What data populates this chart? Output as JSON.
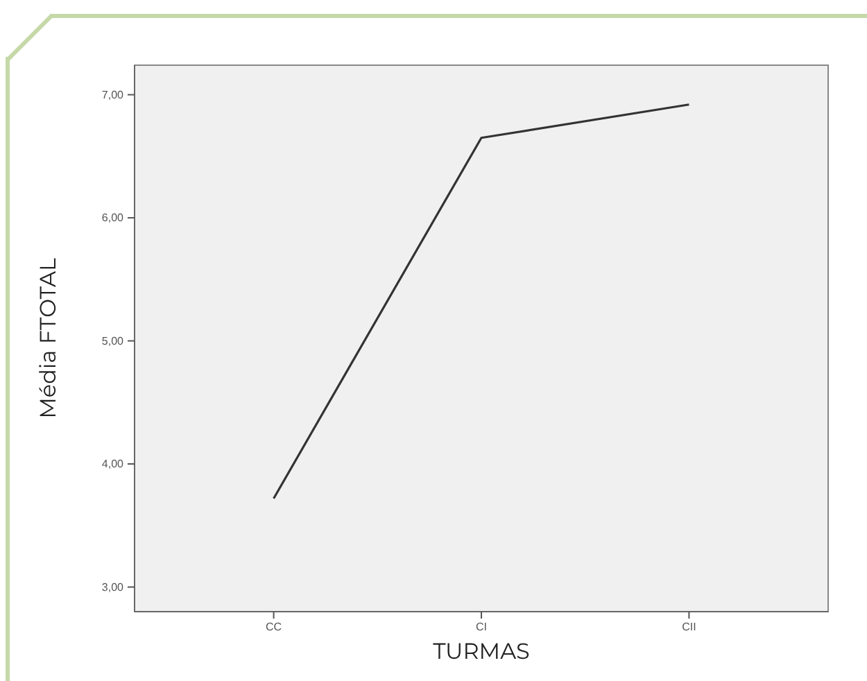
{
  "chart_data": {
    "type": "line",
    "xlabel": "TURMAS",
    "ylabel": "Média FTOTAL",
    "categories": [
      "CC",
      "CI",
      "CII"
    ],
    "series": [
      {
        "color": "#333333",
        "values": [
          3.72,
          6.65,
          6.92
        ]
      }
    ],
    "ylim": [
      2.8,
      7.24
    ],
    "yticks": [
      {
        "value": 3,
        "label": "3,00"
      },
      {
        "value": 4,
        "label": "4,00"
      },
      {
        "value": 5,
        "label": "5,00"
      },
      {
        "value": 6,
        "label": "6,00"
      },
      {
        "value": 7,
        "label": "7,00"
      }
    ],
    "grid": false,
    "marker": "none",
    "line_style": "solid"
  }
}
